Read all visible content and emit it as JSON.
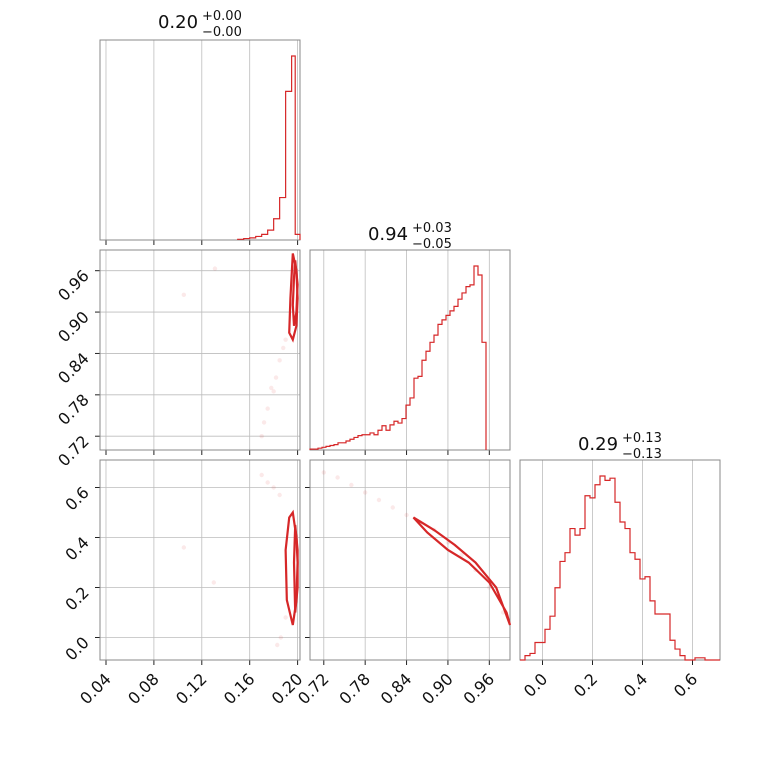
{
  "chart_data": {
    "type": "corner",
    "color": "#d62728",
    "parameters": [
      {
        "title_value": "0.20",
        "title_plus": "+0.00",
        "title_minus": "−0.00",
        "range": [
          0.035,
          0.202
        ],
        "ticks": [
          "0.04",
          "0.08",
          "0.12",
          "0.16",
          "0.20"
        ],
        "tick_values": [
          0.04,
          0.08,
          0.12,
          0.16,
          0.2
        ]
      },
      {
        "title_value": "0.94",
        "title_plus": "+0.03",
        "title_minus": "−0.05",
        "range": [
          0.7,
          0.99
        ],
        "ticks": [
          "0.72",
          "0.78",
          "0.84",
          "0.90",
          "0.96"
        ],
        "tick_values": [
          0.72,
          0.78,
          0.84,
          0.9,
          0.96
        ]
      },
      {
        "title_value": "0.29",
        "title_plus": "+0.13",
        "title_minus": "−0.13",
        "range": [
          -0.09,
          0.71
        ],
        "ticks": [
          "0.0",
          "0.2",
          "0.4",
          "0.6"
        ],
        "tick_values": [
          0.0,
          0.2,
          0.4,
          0.6
        ]
      }
    ],
    "hist1": {
      "bins": [
        0.15,
        0.155,
        0.16,
        0.165,
        0.17,
        0.175,
        0.18,
        0.185,
        0.19,
        0.195,
        0.198,
        0.202
      ],
      "counts": [
        1,
        2,
        3,
        5,
        8,
        14,
        30,
        60,
        210,
        260,
        8
      ]
    },
    "hist2": {
      "x0": 0.7,
      "dx": 0.0058,
      "counts": [
        1,
        1,
        2,
        3,
        4,
        5,
        6,
        8,
        8,
        10,
        12,
        14,
        16,
        17,
        17,
        19,
        17,
        22,
        27,
        22,
        28,
        32,
        30,
        35,
        50,
        58,
        80,
        82,
        100,
        110,
        120,
        128,
        140,
        145,
        150,
        155,
        160,
        168,
        175,
        182,
        184,
        205,
        195,
        120
      ]
    },
    "hist3": {
      "x0": -0.09,
      "dx": 0.02,
      "counts": [
        0,
        2,
        3,
        8,
        8,
        14,
        20,
        33,
        45,
        49,
        60,
        57,
        60,
        75,
        74,
        80,
        84,
        82,
        83,
        72,
        63,
        60,
        49,
        46,
        37,
        38,
        27,
        21,
        21,
        21,
        9,
        5,
        2,
        0,
        0,
        1,
        1,
        0,
        0,
        0
      ]
    },
    "contours_21": [
      {
        "x": [
          0.196,
          0.199,
          0.2,
          0.199,
          0.196,
          0.193,
          0.194,
          0.196
        ],
        "y": [
          0.985,
          0.96,
          0.92,
          0.88,
          0.86,
          0.87,
          0.92,
          0.985
        ]
      },
      {
        "x": [
          0.198,
          0.2,
          0.199,
          0.197,
          0.196,
          0.197,
          0.198
        ],
        "y": [
          0.975,
          0.94,
          0.9,
          0.88,
          0.91,
          0.95,
          0.975
        ]
      }
    ],
    "contours_31": [
      {
        "x": [
          0.196,
          0.199,
          0.2,
          0.199,
          0.196,
          0.191,
          0.19,
          0.193,
          0.196
        ],
        "y": [
          0.5,
          0.4,
          0.3,
          0.15,
          0.05,
          0.15,
          0.35,
          0.48,
          0.5
        ]
      },
      {
        "x": [
          0.198,
          0.2,
          0.2,
          0.198,
          0.197,
          0.198
        ],
        "y": [
          0.45,
          0.35,
          0.2,
          0.1,
          0.3,
          0.45
        ]
      }
    ],
    "contours_32": [
      {
        "x": [
          0.85,
          0.88,
          0.91,
          0.94,
          0.97,
          0.99,
          0.985,
          0.96,
          0.93,
          0.9,
          0.87,
          0.85
        ],
        "y": [
          0.48,
          0.43,
          0.37,
          0.3,
          0.2,
          0.05,
          0.1,
          0.22,
          0.3,
          0.35,
          0.42,
          0.48
        ]
      }
    ],
    "scatter_21": [
      [
        0.105,
        0.925
      ],
      [
        0.131,
        0.963
      ],
      [
        0.17,
        0.72
      ],
      [
        0.175,
        0.76
      ],
      [
        0.178,
        0.79
      ],
      [
        0.182,
        0.805
      ],
      [
        0.185,
        0.83
      ],
      [
        0.188,
        0.848
      ],
      [
        0.19,
        0.86
      ],
      [
        0.172,
        0.74
      ],
      [
        0.18,
        0.785
      ]
    ],
    "scatter_31": [
      [
        0.105,
        0.36
      ],
      [
        0.13,
        0.22
      ],
      [
        0.17,
        0.65
      ],
      [
        0.175,
        0.62
      ],
      [
        0.18,
        0.6
      ],
      [
        0.185,
        0.57
      ],
      [
        0.19,
        0.08
      ],
      [
        0.186,
        0.0
      ],
      [
        0.183,
        -0.03
      ]
    ],
    "scatter_32": [
      [
        0.72,
        0.66
      ],
      [
        0.74,
        0.64
      ],
      [
        0.76,
        0.61
      ],
      [
        0.78,
        0.58
      ],
      [
        0.8,
        0.55
      ],
      [
        0.82,
        0.52
      ],
      [
        0.84,
        0.49
      ],
      [
        0.86,
        0.46
      ],
      [
        0.88,
        0.43
      ],
      [
        0.9,
        0.38
      ],
      [
        0.92,
        0.33
      ],
      [
        0.94,
        0.27
      ],
      [
        0.96,
        0.2
      ],
      [
        0.98,
        0.1
      ]
    ]
  }
}
